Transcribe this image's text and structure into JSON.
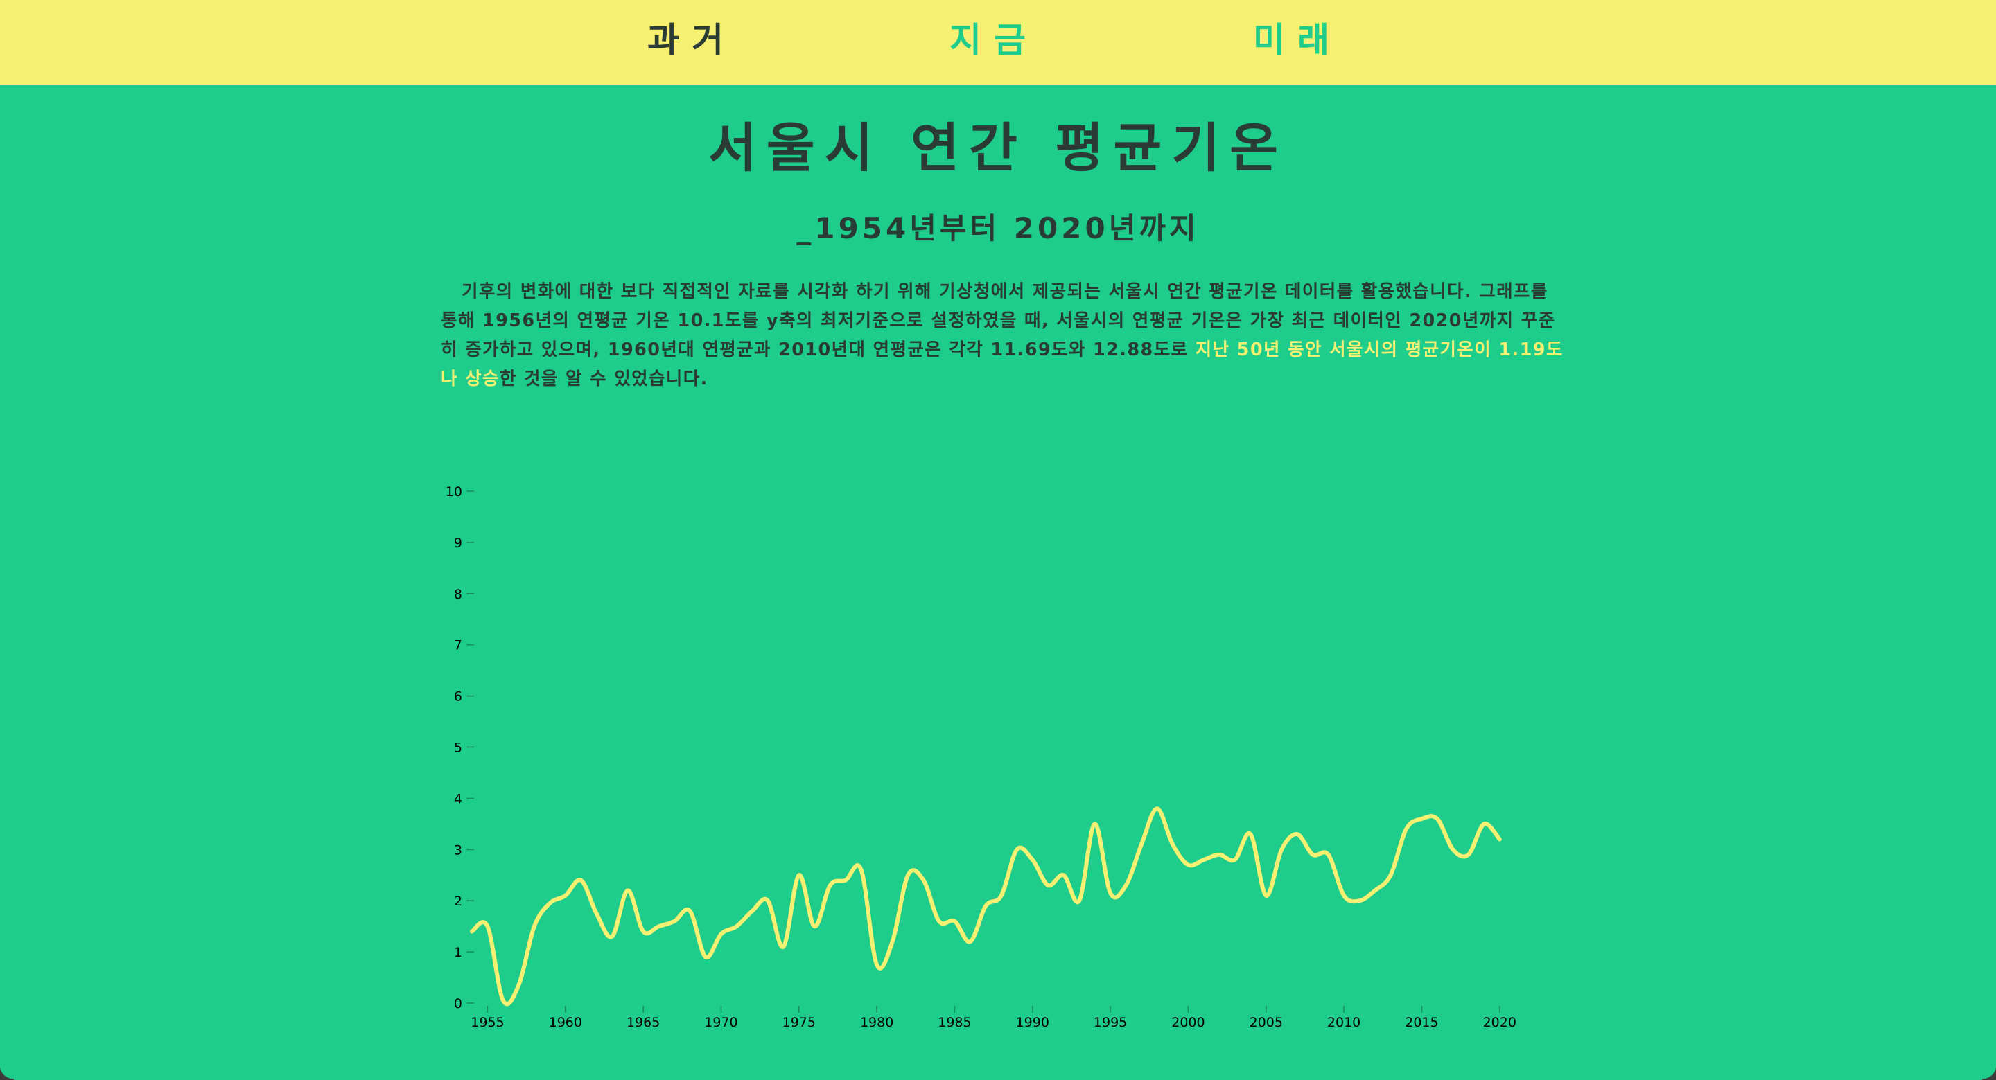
{
  "nav": {
    "items": [
      {
        "label": "과거",
        "color": "#2a3a35"
      },
      {
        "label": "지금",
        "color": "#1ecc8b"
      },
      {
        "label": "미래",
        "color": "#1ecc8b"
      }
    ]
  },
  "header": {
    "title": "서울시 연간 평균기온",
    "subtitle": "_1954년부터 2020년까지"
  },
  "description": {
    "text_plain": "기후의 변화에 대한 보다 직접적인 자료를 시각화 하기 위해 기상청에서 제공되는 서울시 연간 평균기온 데이터를 활용했습니다. 그래프를 통해 1956년의 연평균 기온 10.1도를 y축의 최저기준으로 설정하였을 때, 서울시의 연평균 기온은 가장 최근 데이터인 2020년까지 꾸준히 증가하고 있으며, 1960년대 연평균과 2010년대 연평균은 각각 11.69도와 12.88도로 ",
    "text_highlight": "지난 50년 동안 서울시의 평균기온이 1.19도나 상승",
    "text_end": "한 것을 알 수 있었습니다."
  },
  "colors": {
    "background": "#1ecc8b",
    "nav_background": "#f5ef72",
    "line": "#f5ef72",
    "text": "#2a3a35"
  },
  "chart_data": {
    "type": "line",
    "ylim": [
      0,
      10
    ],
    "y_ticks": [
      0,
      1,
      2,
      3,
      4,
      5,
      6,
      7,
      8,
      9,
      10
    ],
    "x_ticks": [
      1955,
      1960,
      1965,
      1970,
      1975,
      1980,
      1985,
      1990,
      1995,
      2000,
      2005,
      2010,
      2015,
      2020
    ],
    "xlim": [
      1954,
      2020.5
    ],
    "series": [
      {
        "x": [
          1954,
          1955,
          1956,
          1957,
          1958,
          1959,
          1960,
          1961,
          1962,
          1963,
          1964,
          1965,
          1966,
          1967,
          1968,
          1969,
          1970,
          1971,
          1972,
          1973,
          1974,
          1975,
          1976,
          1977,
          1978,
          1979,
          1980,
          1981,
          1982,
          1983,
          1984,
          1985,
          1986,
          1987,
          1988,
          1989,
          1990,
          1991,
          1992,
          1993,
          1994,
          1995,
          1996,
          1997,
          1998,
          1999,
          2000,
          2001,
          2002,
          2003,
          2004,
          2005,
          2006,
          2007,
          2008,
          2009,
          2010,
          2011,
          2012,
          2013,
          2014,
          2015,
          2016,
          2017,
          2018,
          2019,
          2020
        ],
        "values": [
          1.4,
          1.5,
          0.05,
          0.35,
          1.5,
          1.95,
          2.1,
          2.4,
          1.75,
          1.3,
          2.2,
          1.4,
          1.5,
          1.6,
          1.8,
          0.9,
          1.35,
          1.5,
          1.8,
          2.0,
          1.1,
          2.5,
          1.5,
          2.3,
          2.4,
          2.6,
          0.75,
          1.2,
          2.5,
          2.4,
          1.6,
          1.6,
          1.2,
          1.9,
          2.1,
          3.0,
          2.8,
          2.3,
          2.5,
          2.0,
          3.5,
          2.15,
          2.3,
          3.1,
          3.8,
          3.1,
          2.7,
          2.8,
          2.9,
          2.8,
          3.3,
          2.1,
          3.0,
          3.3,
          2.9,
          2.9,
          2.1,
          2.0,
          2.2,
          2.5,
          3.4,
          3.6,
          3.6,
          3.0,
          2.9,
          3.5,
          3.2
        ]
      }
    ]
  }
}
